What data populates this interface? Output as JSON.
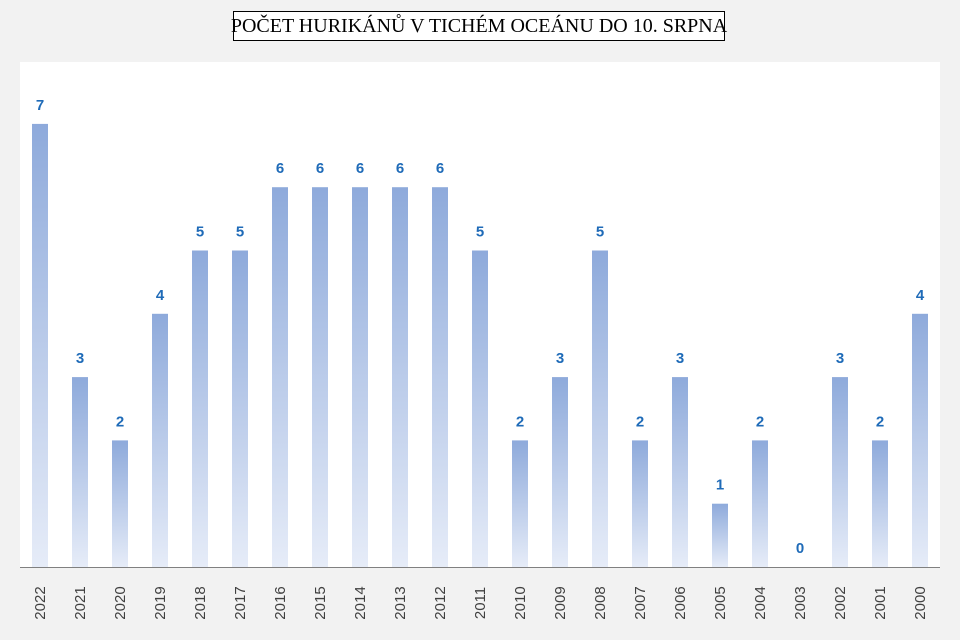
{
  "chart_data": {
    "type": "bar",
    "title": "POČET HURIKÁNŮ V TICHÉM OCEÁNU DO 10. SRPNA",
    "xlabel": "",
    "ylabel": "",
    "categories": [
      "2022",
      "2021",
      "2020",
      "2019",
      "2018",
      "2017",
      "2016",
      "2015",
      "2014",
      "2013",
      "2012",
      "2011",
      "2010",
      "2009",
      "2008",
      "2007",
      "2006",
      "2005",
      "2004",
      "2003",
      "2002",
      "2001",
      "2000"
    ],
    "values": [
      7,
      3,
      2,
      4,
      5,
      5,
      6,
      6,
      6,
      6,
      6,
      5,
      2,
      3,
      5,
      2,
      3,
      1,
      2,
      0,
      3,
      2,
      4
    ],
    "ylim": [
      0,
      8
    ],
    "grid": false,
    "data_labels": true,
    "bar_color_top": "#8eaadb",
    "bar_color_bottom": "#e6ecf8",
    "label_color": "#1f6bb8"
  }
}
